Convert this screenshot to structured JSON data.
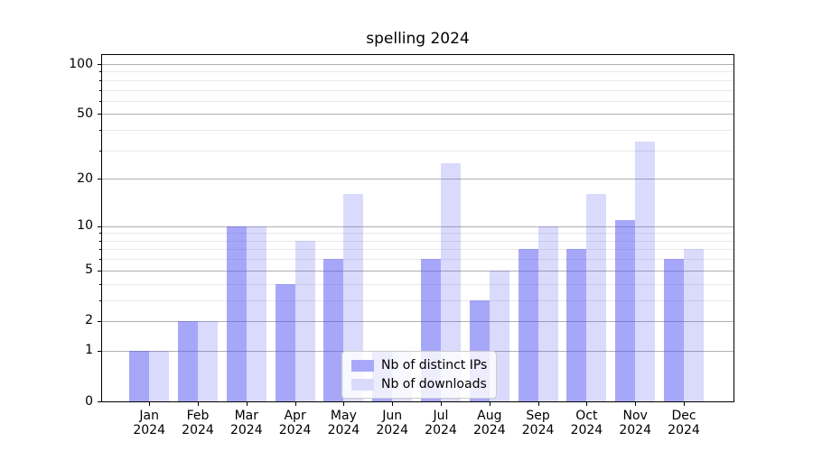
{
  "chart_data": {
    "type": "bar",
    "title": "spelling 2024",
    "categories": [
      "Jan 2024",
      "Feb 2024",
      "Mar 2024",
      "Apr 2024",
      "May 2024",
      "Jun 2024",
      "Jul 2024",
      "Aug 2024",
      "Sep 2024",
      "Oct 2024",
      "Nov 2024",
      "Dec 2024"
    ],
    "months": [
      "Jan",
      "Feb",
      "Mar",
      "Apr",
      "May",
      "Jun",
      "Jul",
      "Aug",
      "Sep",
      "Oct",
      "Nov",
      "Dec"
    ],
    "year_label": "2024",
    "series": [
      {
        "name": "Nb of distinct IPs",
        "fill": "rgba(80,80,245,0.5)",
        "swatch_hex": "#a8a8fa",
        "values": [
          1,
          2,
          10,
          4,
          6,
          1,
          6,
          3,
          7,
          7,
          11,
          6
        ]
      },
      {
        "name": "Nb of downloads",
        "fill": "rgba(80,80,245,0.21)",
        "swatch_hex": "#dadafd",
        "values": [
          1,
          2,
          10,
          8,
          16,
          1,
          25,
          5,
          10,
          16,
          34,
          7
        ]
      }
    ],
    "yscale": "log1p",
    "ylim": [
      0,
      113
    ],
    "y_major_ticks": [
      0,
      1,
      2,
      5,
      10,
      20,
      50,
      100
    ],
    "y_minor_ticks": [
      3,
      4,
      6,
      7,
      8,
      9,
      30,
      40,
      60,
      70,
      80,
      90
    ],
    "grid": true,
    "legend_position": "lower center"
  },
  "colors": {
    "grid_major": "#b0b0b0",
    "grid_minor": "#e9e9e9",
    "axis": "#000000",
    "legend_border": "#cccccc"
  }
}
